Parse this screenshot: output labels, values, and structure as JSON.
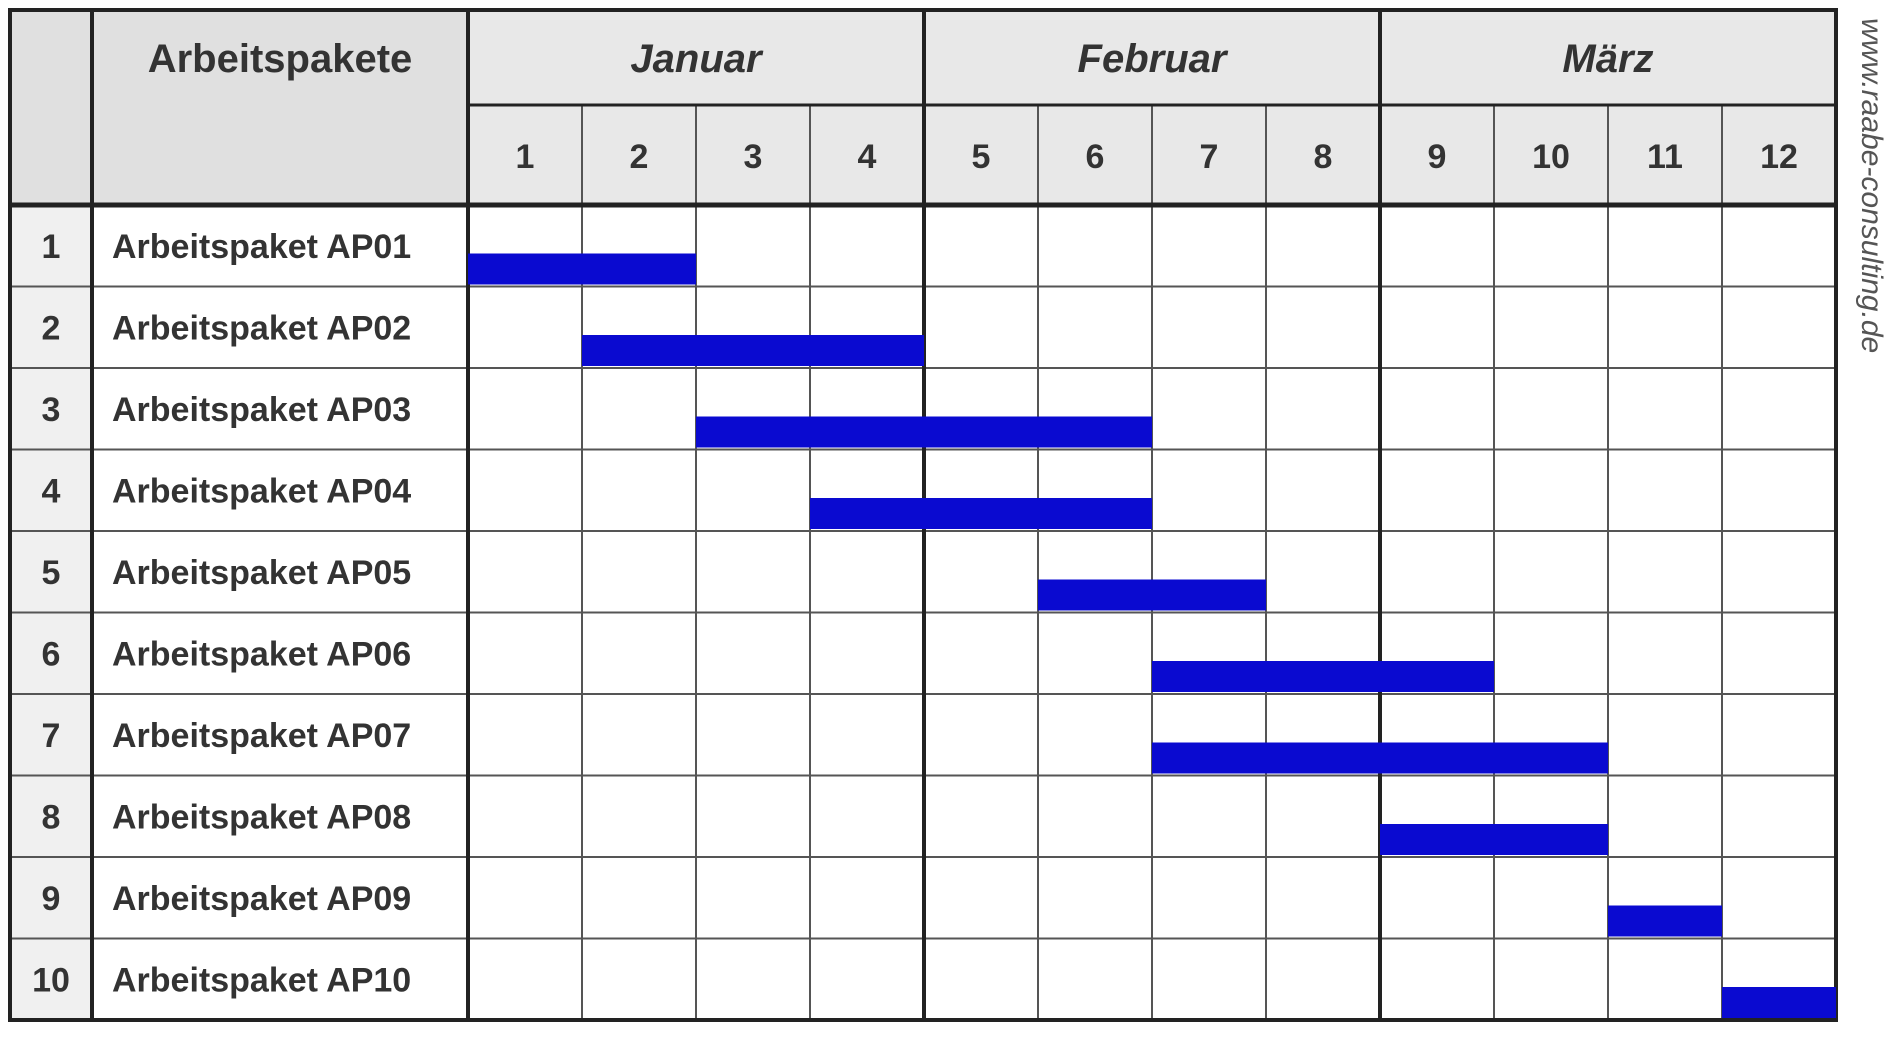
{
  "watermark": "www.raabe-consulting.de",
  "header": {
    "task_column_label": "Arbeitspakete"
  },
  "colors": {
    "bar": "#0a0ad0",
    "header_fill": "#e0e0e0",
    "grid_line": "#555555",
    "frame_line": "#222222",
    "text": "#333333"
  },
  "chart_data": {
    "type": "gantt",
    "months": [
      {
        "label": "Januar",
        "weeks": [
          1,
          2,
          3,
          4
        ]
      },
      {
        "label": "Februar",
        "weeks": [
          5,
          6,
          7,
          8
        ]
      },
      {
        "label": "März",
        "weeks": [
          9,
          10,
          11,
          12
        ]
      }
    ],
    "weeks": [
      1,
      2,
      3,
      4,
      5,
      6,
      7,
      8,
      9,
      10,
      11,
      12
    ],
    "tasks": [
      {
        "id": "1",
        "name": "Arbeitspaket AP01",
        "start_week": 1,
        "end_week": 2
      },
      {
        "id": "2",
        "name": "Arbeitspaket AP02",
        "start_week": 2,
        "end_week": 4
      },
      {
        "id": "3",
        "name": "Arbeitspaket AP03",
        "start_week": 3,
        "end_week": 6
      },
      {
        "id": "4",
        "name": "Arbeitspaket AP04",
        "start_week": 4,
        "end_week": 6
      },
      {
        "id": "5",
        "name": "Arbeitspaket AP05",
        "start_week": 6,
        "end_week": 7
      },
      {
        "id": "6",
        "name": "Arbeitspaket AP06",
        "start_week": 7,
        "end_week": 9
      },
      {
        "id": "7",
        "name": "Arbeitspaket AP07",
        "start_week": 7,
        "end_week": 10
      },
      {
        "id": "8",
        "name": "Arbeitspaket AP08",
        "start_week": 9,
        "end_week": 10
      },
      {
        "id": "9",
        "name": "Arbeitspaket AP09",
        "start_week": 11,
        "end_week": 11
      },
      {
        "id": "10",
        "name": "Arbeitspaket AP10",
        "start_week": 12,
        "end_week": 12
      }
    ]
  }
}
